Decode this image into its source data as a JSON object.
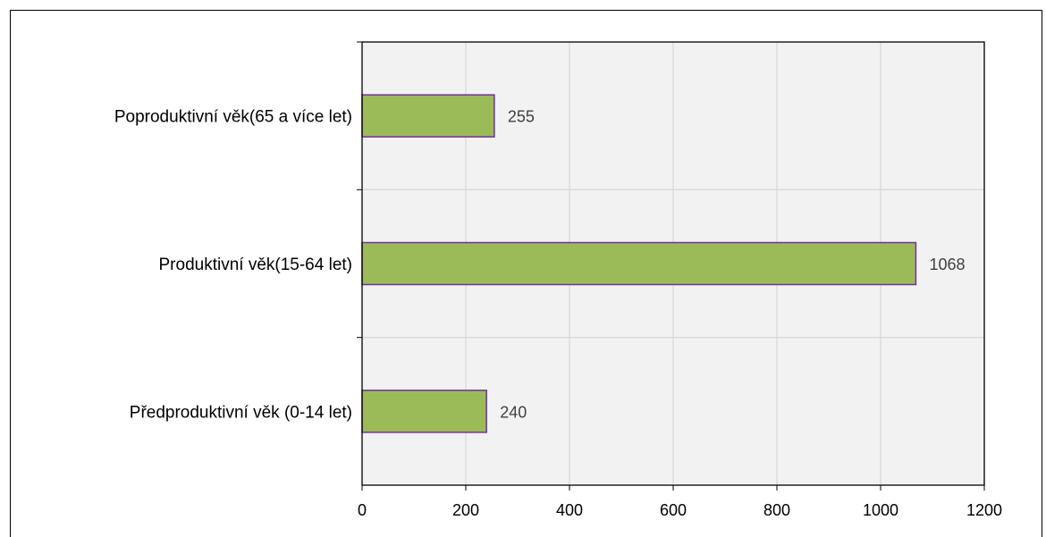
{
  "chart_data": {
    "type": "bar",
    "orientation": "horizontal",
    "title": "",
    "xlabel": "",
    "ylabel": "",
    "categories": [
      "Předproduktivní věk (0-14 let)",
      "Produktivní věk(15-64 let)",
      "Poproduktivní věk(65 a více let)"
    ],
    "values": [
      240,
      1068,
      255
    ],
    "xlim": [
      0,
      1200
    ],
    "xticks": [
      0,
      200,
      400,
      600,
      800,
      1000,
      1200
    ],
    "grid": true,
    "legend": "none",
    "colors": {
      "bar_fill": "#9bbb59",
      "bar_stroke": "#7030a0",
      "plot_background": "#f2f2f2",
      "gridline": "#d9d9d9",
      "data_label": "#404040"
    }
  }
}
